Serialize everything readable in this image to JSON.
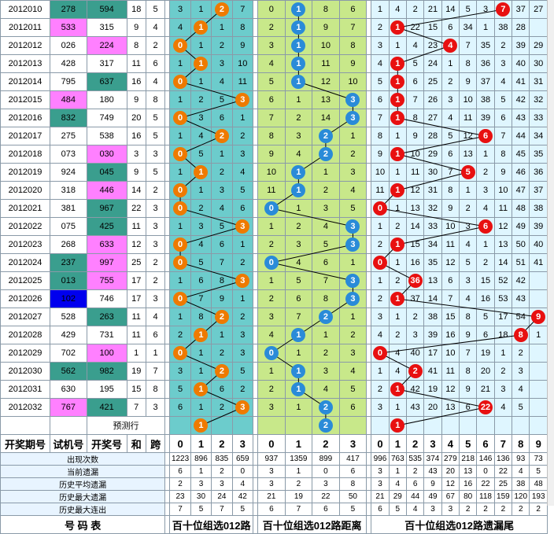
{
  "columns": {
    "period": "开奖期号",
    "trial": "试机号",
    "draw": "开奖号",
    "sum": "和",
    "span": "跨",
    "digits4": [
      "0",
      "1",
      "2",
      "3"
    ],
    "digits10": [
      "0",
      "1",
      "2",
      "3",
      "4",
      "5",
      "6",
      "7",
      "8",
      "9"
    ]
  },
  "rows": [
    {
      "period": "2012010",
      "trial": "278",
      "trial_bg": "t",
      "draw": "594",
      "draw_bg": "t",
      "sum": "18",
      "span": "5",
      "s1": [
        "3",
        "1",
        "2",
        "7"
      ],
      "s1_ball": 2,
      "s2": [
        "0",
        "1",
        "8",
        "6"
      ],
      "s2_ball": 1,
      "s3": [
        "1",
        "4",
        "2",
        "21",
        "14",
        "5",
        "3",
        "7",
        "37",
        "27"
      ],
      "s3_ball": 7
    },
    {
      "period": "2012011",
      "trial": "533",
      "trial_bg": "m",
      "draw": "315",
      "draw_bg": "",
      "sum": "9",
      "span": "4",
      "s1": [
        "4",
        "1",
        "1",
        "8"
      ],
      "s1_ball": 1,
      "s2": [
        "2",
        "1",
        "9",
        "7"
      ],
      "s2_ball": 1,
      "s3": [
        "2",
        "1",
        "22",
        "15",
        "6",
        "34",
        "1",
        "38",
        "28",
        ""
      ],
      "s3_ball": 1
    },
    {
      "period": "2012012",
      "trial": "026",
      "trial_bg": "",
      "draw": "224",
      "draw_bg": "m",
      "sum": "8",
      "span": "2",
      "s1": [
        "0",
        "1",
        "2",
        "9"
      ],
      "s1_ball": 0,
      "s2": [
        "3",
        "1",
        "10",
        "8"
      ],
      "s2_ball": 1,
      "s3": [
        "3",
        "1",
        "4",
        "23",
        "4",
        "7",
        "35",
        "2",
        "39",
        "29"
      ],
      "s3_ball": 4
    },
    {
      "period": "2012013",
      "trial": "428",
      "trial_bg": "",
      "draw": "317",
      "draw_bg": "",
      "sum": "11",
      "span": "6",
      "s1": [
        "1",
        "1",
        "3",
        "10"
      ],
      "s1_ball": 1,
      "s2": [
        "4",
        "1",
        "11",
        "9"
      ],
      "s2_ball": 1,
      "s3": [
        "4",
        "1",
        "5",
        "24",
        "1",
        "8",
        "36",
        "3",
        "40",
        "30"
      ],
      "s3_ball": 1
    },
    {
      "period": "2012014",
      "trial": "795",
      "trial_bg": "",
      "draw": "637",
      "draw_bg": "t",
      "sum": "16",
      "span": "4",
      "s1": [
        "0",
        "1",
        "4",
        "11"
      ],
      "s1_ball": 0,
      "s2": [
        "5",
        "1",
        "12",
        "10"
      ],
      "s2_ball": 1,
      "s3": [
        "5",
        "1",
        "6",
        "25",
        "2",
        "9",
        "37",
        "4",
        "41",
        "31"
      ],
      "s3_ball": 1
    },
    {
      "period": "2012015",
      "trial": "484",
      "trial_bg": "m",
      "draw": "180",
      "draw_bg": "",
      "sum": "9",
      "span": "8",
      "s1": [
        "1",
        "2",
        "5",
        "3"
      ],
      "s1_ball": 3,
      "s2": [
        "6",
        "1",
        "13",
        "3"
      ],
      "s2_ball": 3,
      "s3": [
        "6",
        "1",
        "7",
        "26",
        "3",
        "10",
        "38",
        "5",
        "42",
        "32"
      ],
      "s3_ball": 1
    },
    {
      "period": "2012016",
      "trial": "832",
      "trial_bg": "t",
      "draw": "749",
      "draw_bg": "",
      "sum": "20",
      "span": "5",
      "s1": [
        "0",
        "3",
        "6",
        "1"
      ],
      "s1_ball": 0,
      "s2": [
        "7",
        "2",
        "14",
        "3"
      ],
      "s2_ball": 3,
      "s3": [
        "7",
        "1",
        "8",
        "27",
        "4",
        "11",
        "39",
        "6",
        "43",
        "33"
      ],
      "s3_ball": 1
    },
    {
      "period": "2012017",
      "trial": "275",
      "trial_bg": "",
      "draw": "538",
      "draw_bg": "",
      "sum": "16",
      "span": "5",
      "s1": [
        "1",
        "4",
        "2",
        "2"
      ],
      "s1_ball": 2,
      "s2": [
        "8",
        "3",
        "2",
        "1"
      ],
      "s2_ball": 2,
      "s3": [
        "8",
        "1",
        "9",
        "28",
        "5",
        "12",
        "6",
        "7",
        "44",
        "34"
      ],
      "s3_ball": 6
    },
    {
      "period": "2012018",
      "trial": "073",
      "trial_bg": "",
      "draw": "030",
      "draw_bg": "m",
      "sum": "3",
      "span": "3",
      "s1": [
        "0",
        "5",
        "1",
        "3"
      ],
      "s1_ball": 0,
      "s2": [
        "9",
        "4",
        "2",
        "2"
      ],
      "s2_ball": 2,
      "s3": [
        "9",
        "1",
        "10",
        "29",
        "6",
        "13",
        "1",
        "8",
        "45",
        "35"
      ],
      "s3_ball": 1
    },
    {
      "period": "2012019",
      "trial": "924",
      "trial_bg": "",
      "draw": "045",
      "draw_bg": "t",
      "sum": "9",
      "span": "5",
      "s1": [
        "1",
        "1",
        "2",
        "4"
      ],
      "s1_ball": 1,
      "s2": [
        "10",
        "1",
        "1",
        "3"
      ],
      "s2_ball": 1,
      "s3": [
        "10",
        "1",
        "11",
        "30",
        "7",
        "5",
        "2",
        "9",
        "46",
        "36"
      ],
      "s3_ball": 5
    },
    {
      "period": "2012020",
      "trial": "318",
      "trial_bg": "",
      "draw": "446",
      "draw_bg": "m",
      "sum": "14",
      "span": "2",
      "s1": [
        "0",
        "1",
        "3",
        "5"
      ],
      "s1_ball": 0,
      "s2": [
        "11",
        "1",
        "2",
        "4"
      ],
      "s2_ball": 1,
      "s3": [
        "11",
        "1",
        "12",
        "31",
        "8",
        "1",
        "3",
        "10",
        "47",
        "37"
      ],
      "s3_ball": 1
    },
    {
      "period": "2012021",
      "trial": "381",
      "trial_bg": "",
      "draw": "967",
      "draw_bg": "t",
      "sum": "22",
      "span": "3",
      "s1": [
        "0",
        "2",
        "4",
        "6"
      ],
      "s1_ball": 0,
      "s2": [
        "0",
        "1",
        "3",
        "5"
      ],
      "s2_ball": 0,
      "s3": [
        "0",
        "1",
        "13",
        "32",
        "9",
        "2",
        "4",
        "11",
        "48",
        "38"
      ],
      "s3_ball": 0
    },
    {
      "period": "2012022",
      "trial": "075",
      "trial_bg": "",
      "draw": "425",
      "draw_bg": "t",
      "sum": "11",
      "span": "3",
      "s1": [
        "1",
        "3",
        "5",
        "3"
      ],
      "s1_ball": 3,
      "s2": [
        "1",
        "2",
        "4",
        "3"
      ],
      "s2_ball": 3,
      "s3": [
        "1",
        "2",
        "14",
        "33",
        "10",
        "3",
        "6",
        "12",
        "49",
        "39"
      ],
      "s3_ball": 6
    },
    {
      "period": "2012023",
      "trial": "268",
      "trial_bg": "",
      "draw": "633",
      "draw_bg": "m",
      "sum": "12",
      "span": "3",
      "s1": [
        "0",
        "4",
        "6",
        "1"
      ],
      "s1_ball": 0,
      "s2": [
        "2",
        "3",
        "5",
        "3"
      ],
      "s2_ball": 3,
      "s3": [
        "2",
        "1",
        "15",
        "34",
        "11",
        "4",
        "1",
        "13",
        "50",
        "40"
      ],
      "s3_ball": 1
    },
    {
      "period": "2012024",
      "trial": "237",
      "trial_bg": "t",
      "draw": "997",
      "draw_bg": "m",
      "sum": "25",
      "span": "2",
      "s1": [
        "0",
        "5",
        "7",
        "2"
      ],
      "s1_ball": 0,
      "s2": [
        "0",
        "4",
        "6",
        "1"
      ],
      "s2_ball": 0,
      "s3": [
        "0",
        "1",
        "16",
        "35",
        "12",
        "5",
        "2",
        "14",
        "51",
        "41"
      ],
      "s3_ball": 0
    },
    {
      "period": "2012025",
      "trial": "013",
      "trial_bg": "t",
      "draw": "755",
      "draw_bg": "m",
      "sum": "17",
      "span": "2",
      "s1": [
        "1",
        "6",
        "8",
        "3"
      ],
      "s1_ball": 3,
      "s2": [
        "1",
        "5",
        "7",
        "3"
      ],
      "s2_ball": 3,
      "s3": [
        "1",
        "2",
        "36",
        "13",
        "6",
        "3",
        "15",
        "52",
        "42",
        ""
      ],
      "s3_ball": 2
    },
    {
      "period": "2012026",
      "trial": "102",
      "trial_bg": "b",
      "draw": "746",
      "draw_bg": "",
      "sum": "17",
      "span": "3",
      "s1": [
        "0",
        "7",
        "9",
        "1"
      ],
      "s1_ball": 0,
      "s2": [
        "2",
        "6",
        "8",
        "3"
      ],
      "s2_ball": 3,
      "s3": [
        "2",
        "1",
        "37",
        "14",
        "7",
        "4",
        "16",
        "53",
        "43",
        ""
      ],
      "s3_ball": 1
    },
    {
      "period": "2012027",
      "trial": "528",
      "trial_bg": "",
      "draw": "263",
      "draw_bg": "t",
      "sum": "11",
      "span": "4",
      "s1": [
        "1",
        "8",
        "2",
        "2"
      ],
      "s1_ball": 2,
      "s2": [
        "3",
        "7",
        "2",
        "1"
      ],
      "s2_ball": 2,
      "s3": [
        "3",
        "1",
        "2",
        "38",
        "15",
        "8",
        "5",
        "17",
        "54",
        "9"
      ],
      "s3_ball": 9
    },
    {
      "period": "2012028",
      "trial": "429",
      "trial_bg": "",
      "draw": "731",
      "draw_bg": "",
      "sum": "11",
      "span": "6",
      "s1": [
        "2",
        "1",
        "1",
        "3"
      ],
      "s1_ball": 1,
      "s2": [
        "4",
        "1",
        "1",
        "2"
      ],
      "s2_ball": 1,
      "s3": [
        "4",
        "2",
        "3",
        "39",
        "16",
        "9",
        "6",
        "18",
        "8",
        "1"
      ],
      "s3_ball": 8
    },
    {
      "period": "2012029",
      "trial": "702",
      "trial_bg": "",
      "draw": "100",
      "draw_bg": "m",
      "sum": "1",
      "span": "1",
      "s1": [
        "0",
        "1",
        "2",
        "3"
      ],
      "s1_ball": 0,
      "s2": [
        "0",
        "1",
        "2",
        "3"
      ],
      "s2_ball": 0,
      "s3": [
        "0",
        "4",
        "40",
        "17",
        "10",
        "7",
        "19",
        "1",
        "2",
        ""
      ],
      "s3_ball": 0
    },
    {
      "period": "2012030",
      "trial": "562",
      "trial_bg": "t",
      "draw": "982",
      "draw_bg": "t",
      "sum": "19",
      "span": "7",
      "s1": [
        "3",
        "1",
        "2",
        "5"
      ],
      "s1_ball": 2,
      "s2": [
        "1",
        "1",
        "3",
        "4"
      ],
      "s2_ball": 1,
      "s3": [
        "1",
        "4",
        "2",
        "41",
        "11",
        "8",
        "20",
        "2",
        "3",
        ""
      ],
      "s3_ball": 2
    },
    {
      "period": "2012031",
      "trial": "630",
      "trial_bg": "",
      "draw": "195",
      "draw_bg": "",
      "sum": "15",
      "span": "8",
      "s1": [
        "5",
        "1",
        "6",
        "2"
      ],
      "s1_ball": 1,
      "s2": [
        "2",
        "1",
        "4",
        "5"
      ],
      "s2_ball": 1,
      "s3": [
        "2",
        "1",
        "42",
        "19",
        "12",
        "9",
        "21",
        "3",
        "4",
        ""
      ],
      "s3_ball": 1
    },
    {
      "period": "2012032",
      "trial": "767",
      "trial_bg": "m",
      "draw": "421",
      "draw_bg": "t",
      "sum": "7",
      "span": "3",
      "s1": [
        "6",
        "1",
        "2",
        "3"
      ],
      "s1_ball": 3,
      "s2": [
        "3",
        "1",
        "2",
        "6"
      ],
      "s2_ball": 2,
      "s3": [
        "3",
        "1",
        "43",
        "20",
        "13",
        "6",
        "22",
        "4",
        "5",
        ""
      ],
      "s3_ball": 6
    }
  ],
  "predict": {
    "label": "预测行",
    "s1_ball": "1",
    "s2_ball": "2",
    "s3_ball": "1"
  },
  "stats": {
    "labels": [
      "出现次数",
      "当前遗漏",
      "历史平均遗漏",
      "历史最大遗漏",
      "历史最大连出"
    ],
    "s1": [
      [
        "1223",
        "896",
        "835",
        "659"
      ],
      [
        "6",
        "1",
        "2",
        "0"
      ],
      [
        "2",
        "3",
        "3",
        "4"
      ],
      [
        "23",
        "30",
        "24",
        "42"
      ],
      [
        "7",
        "5",
        "7",
        "5"
      ]
    ],
    "s2": [
      [
        "937",
        "1359",
        "899",
        "417"
      ],
      [
        "3",
        "1",
        "0",
        "6"
      ],
      [
        "3",
        "2",
        "3",
        "8"
      ],
      [
        "21",
        "19",
        "22",
        "50"
      ],
      [
        "6",
        "7",
        "6",
        "5"
      ]
    ],
    "s3": [
      [
        "996",
        "763",
        "535",
        "374",
        "279",
        "218",
        "146",
        "136",
        "93",
        "73"
      ],
      [
        "3",
        "1",
        "2",
        "43",
        "20",
        "13",
        "0",
        "22",
        "4",
        "5"
      ],
      [
        "3",
        "4",
        "6",
        "9",
        "12",
        "16",
        "22",
        "25",
        "38",
        "48"
      ],
      [
        "21",
        "29",
        "44",
        "49",
        "67",
        "80",
        "118",
        "159",
        "120",
        "193"
      ],
      [
        "6",
        "5",
        "4",
        "3",
        "3",
        "2",
        "2",
        "2",
        "2",
        "2"
      ]
    ]
  },
  "footer": {
    "table_label": "号  码  表",
    "s1_label": "百十位组选012路",
    "s2_label": "百十位组选012路距离",
    "s3_label": "百十位组选012路遗漏尾"
  },
  "colors": {
    "teal": "#3a9e8e",
    "magenta": "#ff80ff",
    "blue": "#0000ee",
    "orange_ball": "#ee7a00",
    "blue_ball": "#2a8bd8",
    "red_ball": "#e81010"
  }
}
